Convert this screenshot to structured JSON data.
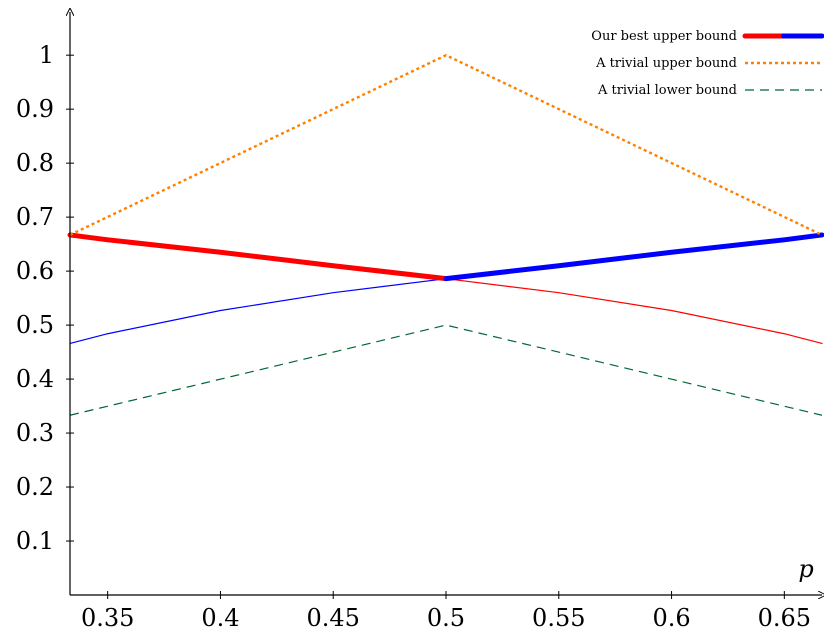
{
  "chart_data": {
    "type": "line",
    "title": "",
    "xlabel": "p",
    "ylabel": "",
    "xlim": [
      0.3333,
      0.6667
    ],
    "ylim": [
      0,
      1.08
    ],
    "x_ticks": [
      0.35,
      0.4,
      0.45,
      0.5,
      0.55,
      0.6,
      0.65
    ],
    "x_tick_labels": [
      "0.35",
      "0.4",
      "0.45",
      "0.5",
      "0.55",
      "0.6",
      "0.65"
    ],
    "y_ticks": [
      0.1,
      0.2,
      0.3,
      0.4,
      0.5,
      0.6,
      0.7,
      0.8,
      0.9,
      1
    ],
    "y_tick_labels": [
      "0.1",
      "0.2",
      "0.3",
      "0.4",
      "0.5",
      "0.6",
      "0.7",
      "0.8",
      "0.9",
      "1"
    ],
    "grid": false,
    "legend_position": "top-right",
    "legend": [
      {
        "label": "Our best upper bound",
        "colors": [
          "#ff0000",
          "#0000ff"
        ],
        "style": "thick-solid"
      },
      {
        "label": "A trivial upper bound",
        "colors": [
          "#ff8000"
        ],
        "style": "dotted"
      },
      {
        "label": "A trivial lower bound",
        "colors": [
          "#006633"
        ],
        "style": "dashed"
      }
    ],
    "series": [
      {
        "color": "#ff0000",
        "style": "thin-solid",
        "x": [
          0.3333,
          0.35,
          0.4,
          0.45,
          0.5,
          0.55,
          0.6,
          0.65,
          0.6667
        ],
        "y": [
          0.667,
          0.658,
          0.635,
          0.61,
          0.586,
          0.56,
          0.527,
          0.484,
          0.466
        ]
      },
      {
        "color": "#0000ff",
        "style": "thin-solid",
        "x": [
          0.3333,
          0.35,
          0.4,
          0.45,
          0.5,
          0.55,
          0.6,
          0.65,
          0.6667
        ],
        "y": [
          0.466,
          0.484,
          0.527,
          0.56,
          0.586,
          0.61,
          0.635,
          0.658,
          0.667
        ]
      },
      {
        "color": "#ff0000",
        "style": "thick-solid",
        "x": [
          0.3333,
          0.35,
          0.4,
          0.45,
          0.5
        ],
        "y": [
          0.667,
          0.658,
          0.635,
          0.61,
          0.586
        ]
      },
      {
        "color": "#0000ff",
        "style": "thick-solid",
        "x": [
          0.5,
          0.55,
          0.6,
          0.65,
          0.6667
        ],
        "y": [
          0.586,
          0.61,
          0.635,
          0.658,
          0.667
        ]
      },
      {
        "color": "#ff8000",
        "style": "dotted",
        "x": [
          0.3333,
          0.5,
          0.6667
        ],
        "y": [
          0.667,
          1.0,
          0.667
        ]
      },
      {
        "color": "#006633",
        "style": "dashed",
        "x": [
          0.3333,
          0.5,
          0.6667
        ],
        "y": [
          0.333,
          0.5,
          0.333
        ]
      }
    ]
  }
}
